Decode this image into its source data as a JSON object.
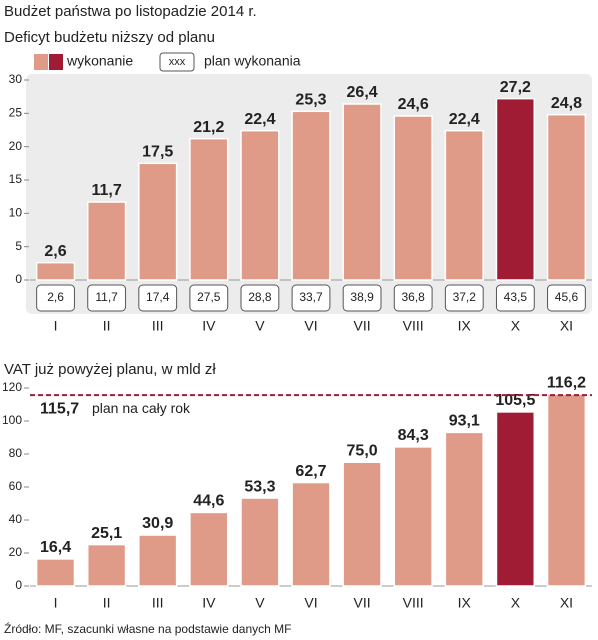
{
  "title": "Budżet państwa po listopadzie 2014 r.",
  "source": "Źródło: MF, szacunki własne na podstawie danych MF",
  "chart_data": [
    {
      "type": "bar",
      "title": "Deficyt budżetu niższy od planu",
      "categories": [
        "I",
        "II",
        "III",
        "IV",
        "V",
        "VI",
        "VII",
        "VIII",
        "IX",
        "X",
        "XI"
      ],
      "legend_sample": "xxx",
      "series": [
        {
          "name": "wykonanie",
          "colors": [
            "#e09a88",
            "#e09a88",
            "#e09a88",
            "#e09a88",
            "#e09a88",
            "#e09a88",
            "#e09a88",
            "#e09a88",
            "#e09a88",
            "#a01c35",
            "#e09a88"
          ],
          "values": [
            2.6,
            11.7,
            17.5,
            21.2,
            22.4,
            25.3,
            26.4,
            24.6,
            22.4,
            27.2,
            24.8
          ],
          "value_labels": [
            "2,6",
            "11,7",
            "17,5",
            "21,2",
            "22,4",
            "25,3",
            "26,4",
            "24,6",
            "22,4",
            "27,2",
            "24,8"
          ]
        },
        {
          "name": "plan wykonania",
          "values": [
            2.6,
            11.7,
            17.4,
            27.5,
            28.8,
            33.7,
            38.9,
            36.8,
            37.2,
            43.5,
            45.6
          ],
          "value_labels": [
            "2,6",
            "11,7",
            "17,4",
            "27,5",
            "28,8",
            "33,7",
            "38,9",
            "36,8",
            "37,2",
            "43,5",
            "45,6"
          ]
        }
      ],
      "ylim": [
        0,
        30
      ],
      "yticks": [
        0,
        5,
        10,
        15,
        20,
        25,
        30
      ]
    },
    {
      "type": "bar",
      "title": "VAT już powyżej planu, w mld zł",
      "categories": [
        "I",
        "II",
        "III",
        "IV",
        "V",
        "VI",
        "VII",
        "VIII",
        "IX",
        "X",
        "XI"
      ],
      "colors": [
        "#e09a88",
        "#e09a88",
        "#e09a88",
        "#e09a88",
        "#e09a88",
        "#e09a88",
        "#e09a88",
        "#e09a88",
        "#e09a88",
        "#a01c35",
        "#e09a88"
      ],
      "values": [
        16.4,
        25.1,
        30.9,
        44.6,
        53.3,
        62.7,
        75.0,
        84.3,
        93.1,
        105.5,
        116.2
      ],
      "value_labels": [
        "16,4",
        "25,1",
        "30,9",
        "44,6",
        "53,3",
        "62,7",
        "75,0",
        "84,3",
        "93,1",
        "105,5",
        "116,2"
      ],
      "reference_line": {
        "value": 115.7,
        "label": "115,7",
        "text": "plan na cały rok",
        "color": "#a01c35"
      },
      "ylim": [
        0,
        120
      ],
      "yticks": [
        0,
        20,
        40,
        60,
        80,
        100,
        120
      ]
    }
  ]
}
